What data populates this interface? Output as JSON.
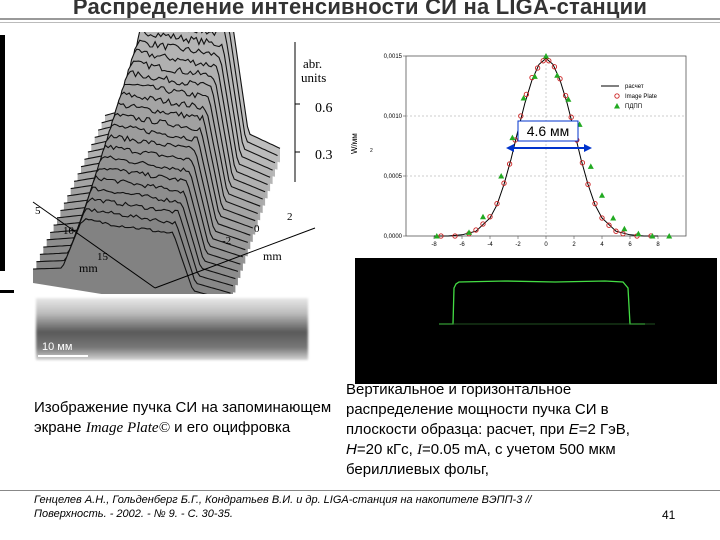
{
  "slide": {
    "title": "Распределение интенсивности СИ на LIGA-станции",
    "page_number": "41"
  },
  "left_panel": {
    "surface_labels": {
      "unit_line1": "abr.",
      "unit_line2": "units",
      "z_tick_1": "0.6",
      "z_tick_2": "0.3",
      "x_axis_unit": "mm",
      "y_axis_unit": "mm",
      "x_ticks": [
        "-2",
        "0",
        "2"
      ],
      "y_ticks": [
        "5",
        "10",
        "15"
      ]
    },
    "scale_bar_label": "10 мм",
    "caption": {
      "part1": "Изображение пучка СИ на запоминающем экране ",
      "italic": "Image Plate©",
      "part2": " и его оцифровка"
    }
  },
  "right_panel": {
    "caption": {
      "line1": "Вертикальное и горизонтальное",
      "line2": "распределение мощности пучка СИ в",
      "line3a": "плоскости образца: расчет, при ",
      "line3_var1": "E",
      "line3b": "=2 ГэВ,",
      "line4_var1": "H",
      "line4a": "=20 кГс, ",
      "line4_var2": "I",
      "line4b": "=0.05 mA, с учетом 500 мкм",
      "line5": "бериллиевых фольг,"
    }
  },
  "reference": {
    "line1": "Генцелев А.Н., Гольденберг Б.Г., Кондратьев В.И. и др. LIGA-станция на накопителе ВЭПП-3 //",
    "line2": "Поверхность. - 2002. - № 9. - С. 30-35."
  },
  "chart_data": [
    {
      "type": "scatter",
      "y_axis_label": "W/мм",
      "y_axis_label_tiny": "2",
      "ylim": [
        0.0,
        0.0015
      ],
      "xlim": [
        -10,
        10
      ],
      "y_ticks": [
        "0,0000",
        "0,0005",
        "0,0010",
        "0,0015"
      ],
      "x_ticks": [
        "-8",
        "-6",
        "-4",
        "-2",
        "0",
        "2",
        "4",
        "6",
        "8"
      ],
      "legend_position": "right",
      "annotation": "4.6 мм",
      "series": [
        {
          "name": "расчет",
          "style": "line",
          "color": "#000000",
          "x": [
            -8,
            -7,
            -6,
            -5,
            -4,
            -3.5,
            -3,
            -2.5,
            -2,
            -1.5,
            -1,
            -0.5,
            0,
            0.5,
            1,
            1.5,
            2,
            2.5,
            3,
            3.5,
            4,
            5,
            6,
            7,
            8
          ],
          "y": [
            0.0,
            0.0,
            1e-05,
            4e-05,
            0.00015,
            0.00026,
            0.00043,
            0.00064,
            0.00088,
            0.00111,
            0.0013,
            0.00143,
            0.00148,
            0.00143,
            0.0013,
            0.00111,
            0.00088,
            0.00064,
            0.00043,
            0.00026,
            0.00015,
            4e-05,
            1e-05,
            0.0,
            0.0
          ]
        },
        {
          "name": "Image Plate",
          "style": "circle",
          "color": "#cc2222",
          "x": [
            -7.5,
            -6.5,
            -5.5,
            -5,
            -4.5,
            -4,
            -3.5,
            -3,
            -2.6,
            -2.2,
            -1.8,
            -1.4,
            -1,
            -0.6,
            -0.2,
            0.2,
            0.6,
            1,
            1.4,
            1.8,
            2.2,
            2.6,
            3,
            3.5,
            4,
            4.5,
            5,
            5.5,
            6.5,
            7.5
          ],
          "y": [
            0.0,
            0.0,
            2e-05,
            5e-05,
            0.0001,
            0.00016,
            0.00027,
            0.00044,
            0.0006,
            0.0008,
            0.001,
            0.00118,
            0.00132,
            0.0014,
            0.00146,
            0.00146,
            0.00141,
            0.00131,
            0.00117,
            0.00099,
            0.0008,
            0.00061,
            0.00043,
            0.00027,
            0.00015,
            9e-05,
            4e-05,
            2e-05,
            0.0,
            0.0
          ]
        },
        {
          "name": "ПДПП",
          "style": "triangle",
          "color": "#22aa22",
          "x": [
            -7.8,
            -5.5,
            -4.5,
            -3.2,
            -2.4,
            -1.6,
            -0.8,
            0,
            0.8,
            1.6,
            2.4,
            3.2,
            4.0,
            4.8,
            5.6,
            6.6,
            7.6,
            8.8
          ],
          "y": [
            0.0,
            3e-05,
            0.00016,
            0.0005,
            0.00082,
            0.00115,
            0.00133,
            0.0015,
            0.00134,
            0.00114,
            0.00093,
            0.00058,
            0.00034,
            0.00015,
            6e-05,
            2e-05,
            0.0,
            0.0
          ]
        }
      ]
    }
  ]
}
